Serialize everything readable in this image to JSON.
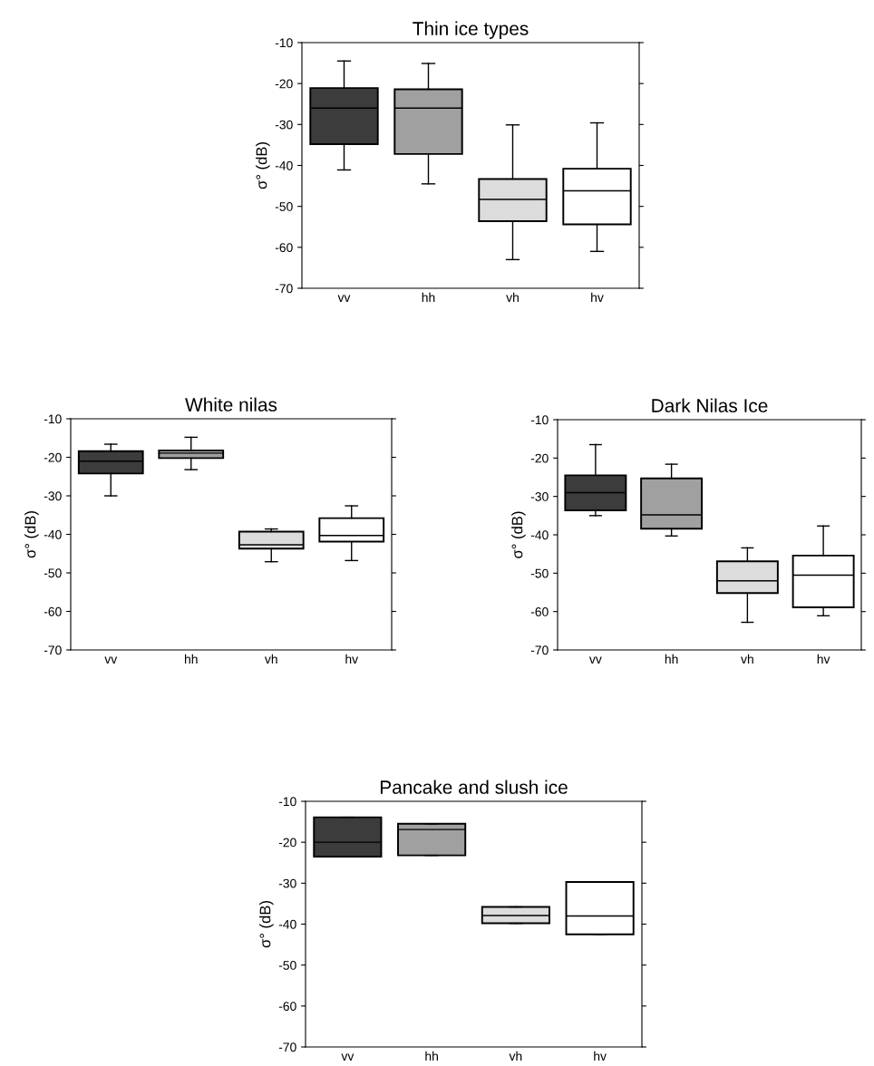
{
  "chart_data": [
    {
      "type": "box",
      "title": "Thin ice types",
      "ylabel": "σ° (dB)",
      "categories": [
        "vv",
        "hh",
        "vh",
        "hv"
      ],
      "colors": [
        "#3c3c3c",
        "#a0a0a0",
        "#dcdcdc",
        "#ffffff"
      ],
      "ylim": [
        -70,
        -10
      ],
      "yticks": [
        -70,
        -60,
        -50,
        -40,
        -30,
        -20,
        -10
      ],
      "grid": false,
      "legend": false,
      "boxes": [
        {
          "low": -41.1,
          "q1": -34.8,
          "median": -26,
          "q3": -21.1,
          "high": -14.5
        },
        {
          "low": -44.5,
          "q1": -37.2,
          "median": -26,
          "q3": -21.4,
          "high": -15.1
        },
        {
          "low": -63,
          "q1": -53.6,
          "median": -48.3,
          "q3": -43.3,
          "high": -30.1
        },
        {
          "low": -61,
          "q1": -54.4,
          "median": -46.2,
          "q3": -40.8,
          "high": -29.6
        }
      ]
    },
    {
      "type": "box",
      "title": "White nilas",
      "ylabel": "σ° (dB)",
      "categories": [
        "vv",
        "hh",
        "vh",
        "hv"
      ],
      "colors": [
        "#3c3c3c",
        "#a0a0a0",
        "#dcdcdc",
        "#ffffff"
      ],
      "ylim": [
        -70,
        -10
      ],
      "yticks": [
        -70,
        -60,
        -50,
        -40,
        -30,
        -20,
        -10
      ],
      "grid": false,
      "legend": false,
      "boxes": [
        {
          "low": -30,
          "q1": -24.2,
          "median": -21,
          "q3": -18.4,
          "high": -16.6
        },
        {
          "low": -23.2,
          "q1": -20.2,
          "median": -18.9,
          "q3": -18.2,
          "high": -14.8
        },
        {
          "low": -47.1,
          "q1": -43.7,
          "median": -42.7,
          "q3": -39.3,
          "high": -38.6
        },
        {
          "low": -46.8,
          "q1": -41.9,
          "median": -40.3,
          "q3": -35.8,
          "high": -32.6
        }
      ]
    },
    {
      "type": "box",
      "title": "Dark Nilas Ice",
      "ylabel": "σ° (dB)",
      "categories": [
        "vv",
        "hh",
        "vh",
        "hv"
      ],
      "colors": [
        "#3c3c3c",
        "#a0a0a0",
        "#dcdcdc",
        "#ffffff"
      ],
      "ylim": [
        -70,
        -10
      ],
      "yticks": [
        -70,
        -60,
        -50,
        -40,
        -30,
        -20,
        -10
      ],
      "grid": false,
      "legend": false,
      "boxes": [
        {
          "low": -35,
          "q1": -33.6,
          "median": -29,
          "q3": -24.5,
          "high": -16.5
        },
        {
          "low": -40.3,
          "q1": -38.4,
          "median": -34.8,
          "q3": -25.3,
          "high": -21.6
        },
        {
          "low": -62.8,
          "q1": -55.2,
          "median": -52,
          "q3": -46.9,
          "high": -43.4
        },
        {
          "low": -61.1,
          "q1": -58.9,
          "median": -50.5,
          "q3": -45.4,
          "high": -37.7
        }
      ]
    },
    {
      "type": "box",
      "title": "Pancake and slush ice",
      "ylabel": "σ° (dB)",
      "categories": [
        "vv",
        "hh",
        "vh",
        "hv"
      ],
      "colors": [
        "#3c3c3c",
        "#a0a0a0",
        "#dcdcdc",
        "#ffffff"
      ],
      "ylim": [
        -70,
        -10
      ],
      "yticks": [
        -70,
        -60,
        -50,
        -40,
        -30,
        -20,
        -10
      ],
      "grid": false,
      "legend": false,
      "boxes": [
        {
          "low": -23.5,
          "q1": -23.5,
          "median": -20,
          "q3": -13.9,
          "high": -13.9
        },
        {
          "low": -23.2,
          "q1": -23.2,
          "median": -16.9,
          "q3": -15.5,
          "high": -15.5
        },
        {
          "low": -39.8,
          "q1": -39.8,
          "median": -37.9,
          "q3": -35.8,
          "high": -35.8
        },
        {
          "low": -42.5,
          "q1": -42.5,
          "median": -38,
          "q3": -29.7,
          "high": -29.7
        }
      ]
    }
  ]
}
